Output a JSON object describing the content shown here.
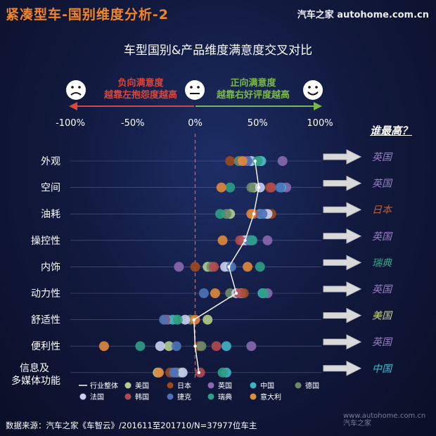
{
  "header": {
    "title": "紧凑型车-国别维度分析-2",
    "watermark": "汽车之家 autohome.com.cn"
  },
  "chart_data": {
    "type": "scatter",
    "title": "车型国别&产品维度满意度交叉对比",
    "direction_labels": {
      "negative_line1": "负向满意度",
      "negative_line2": "越靠左抱怨度越高",
      "positive_line1": "正向满意度",
      "positive_line2": "越靠右好评度越高"
    },
    "x_ticks": [
      "-100%",
      "-50%",
      "0%",
      "50%",
      "100%"
    ],
    "xlim": [
      -100,
      100
    ],
    "categories": [
      "外观",
      "空间",
      "油耗",
      "操控性",
      "内饰",
      "动力性",
      "舒适性",
      "便利性",
      "信息及\n多媒体功能"
    ],
    "series": [
      {
        "name": "行业整体",
        "color": "#ffffff",
        "kind": "line",
        "values": [
          48,
          51,
          47,
          40,
          27,
          33,
          -1,
          0,
          3
        ]
      },
      {
        "name": "美国",
        "color": "#b5cc8e",
        "kind": "dot",
        "values": [
          52,
          47,
          28,
          44,
          10,
          37,
          10,
          -21,
          -30
        ]
      },
      {
        "name": "日本",
        "color": "#9c4a1e",
        "kind": "dot",
        "values": [
          28,
          60,
          61,
          42,
          0,
          39,
          -15,
          3,
          -20
        ]
      },
      {
        "name": "英国",
        "color": "#8a69b0",
        "kind": "dot",
        "values": [
          70,
          73,
          56,
          58,
          -13,
          58,
          -22,
          45,
          -15
        ]
      },
      {
        "name": "中国",
        "color": "#42b2c7",
        "kind": "dot",
        "values": [
          53,
          69,
          52,
          45,
          27,
          54,
          -18,
          25,
          25
        ]
      },
      {
        "name": "德国",
        "color": "#6e8a6a",
        "kind": "dot",
        "values": [
          35,
          45,
          25,
          38,
          13,
          28,
          -4,
          5,
          -12
        ]
      },
      {
        "name": "法国",
        "color": "#c9cff0",
        "kind": "dot",
        "values": [
          45,
          52,
          58,
          40,
          24,
          33,
          -8,
          -28,
          -10
        ]
      },
      {
        "name": "韩国",
        "color": "#b14a50",
        "kind": "dot",
        "values": [
          41,
          61,
          47,
          36,
          15,
          35,
          -24,
          17,
          4
        ]
      },
      {
        "name": "捷克",
        "color": "#4c73b8",
        "kind": "dot",
        "values": [
          42,
          68,
          54,
          43,
          29,
          7,
          -25,
          -15,
          -17
        ]
      },
      {
        "name": "瑞典",
        "color": "#2e9e84",
        "kind": "dot",
        "values": [
          50,
          28,
          20,
          46,
          52,
          55,
          -14,
          -44,
          22
        ]
      },
      {
        "name": "意大利",
        "color": "#e08a3c",
        "kind": "dot",
        "values": [
          38,
          21,
          45,
          22,
          42,
          16,
          0,
          -73,
          -29
        ]
      }
    ],
    "winner_title": "谁最高？",
    "winners": [
      {
        "label": "英国",
        "color": "#9a7ec4"
      },
      {
        "label": "英国",
        "color": "#9a7ec4"
      },
      {
        "label": "日本",
        "color": "#c0612a"
      },
      {
        "label": "英国",
        "color": "#9a7ec4"
      },
      {
        "label": "瑞典",
        "color": "#3aa58a"
      },
      {
        "label": "英国",
        "color": "#9a7ec4"
      },
      {
        "label": "美国",
        "color": "#c4d48e"
      },
      {
        "label": "英国",
        "color": "#9a7ec4"
      },
      {
        "label": "中国",
        "color": "#46b7cc"
      }
    ],
    "legend_placement": "bottom",
    "grid": true
  },
  "footer": {
    "source": "数据来源：汽车之家《车智云》/201611至201710/N=37977位车主",
    "watermark_line1": "www.autohome.com.cn",
    "watermark_line2": "汽车之家"
  }
}
